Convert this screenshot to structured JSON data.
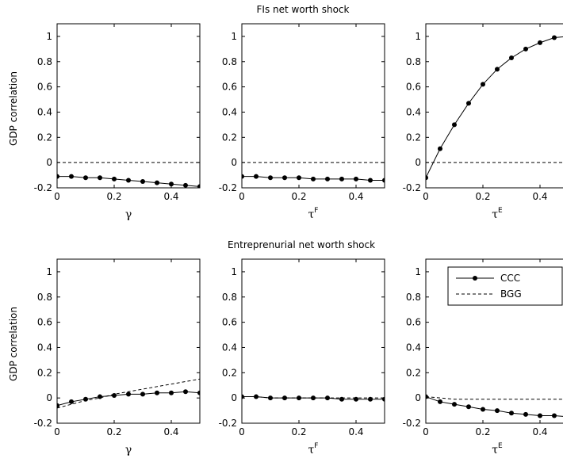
{
  "chart_data": {
    "type": "line",
    "ylabel": "GDP correlation",
    "ylim": [
      -0.2,
      1.1
    ],
    "yticks": [
      "1",
      "0.8",
      "0.6",
      "0.4",
      "0.2",
      "0",
      "-0.2"
    ],
    "xlim": [
      0,
      0.5
    ],
    "xticks": [
      "0",
      "0.2",
      "0.4"
    ],
    "legend": {
      "position": "top-right",
      "entries": [
        "CCC",
        "BGG"
      ]
    },
    "series_names": [
      "CCC",
      "BGG"
    ],
    "x": [
      0,
      0.05,
      0.1,
      0.15,
      0.2,
      0.25,
      0.3,
      0.35,
      0.4,
      0.45,
      0.5
    ],
    "panel_rows": [
      {
        "title": "FIs net worth shock",
        "panels": [
          {
            "xlabel": "γ",
            "xlabel_sup": "",
            "CCC": [
              -0.11,
              -0.11,
              -0.12,
              -0.12,
              -0.13,
              -0.14,
              -0.15,
              -0.16,
              -0.17,
              -0.18,
              -0.19
            ],
            "BGG": [
              0,
              0,
              0,
              0,
              0,
              0,
              0,
              0,
              0,
              0,
              0
            ]
          },
          {
            "xlabel": "τ",
            "xlabel_sup": "F",
            "CCC": [
              -0.11,
              -0.11,
              -0.12,
              -0.12,
              -0.12,
              -0.13,
              -0.13,
              -0.13,
              -0.13,
              -0.14,
              -0.14
            ],
            "BGG": [
              0,
              0,
              0,
              0,
              0,
              0,
              0,
              0,
              0,
              0,
              0
            ]
          },
          {
            "xlabel": "τ",
            "xlabel_sup": "E",
            "CCC": [
              -0.12,
              0.11,
              0.3,
              0.47,
              0.62,
              0.74,
              0.83,
              0.9,
              0.95,
              0.99,
              1.0
            ],
            "BGG": [
              0,
              0,
              0,
              0,
              0,
              0,
              0,
              0,
              0,
              0,
              0
            ]
          }
        ]
      },
      {
        "title": "Entreprenurial net worth shock",
        "panels": [
          {
            "xlabel": "γ",
            "xlabel_sup": "",
            "CCC": [
              -0.06,
              -0.03,
              -0.01,
              0.01,
              0.02,
              0.03,
              0.03,
              0.04,
              0.04,
              0.05,
              0.04
            ],
            "BGG": [
              -0.08,
              -0.05,
              -0.02,
              0.0,
              0.03,
              0.05,
              0.07,
              0.09,
              0.11,
              0.13,
              0.15
            ]
          },
          {
            "xlabel": "τ",
            "xlabel_sup": "F",
            "CCC": [
              0.01,
              0.01,
              0.0,
              0.0,
              0.0,
              0.0,
              0.0,
              -0.01,
              -0.01,
              -0.01,
              -0.01
            ],
            "BGG": [
              0.01,
              0.01,
              0.0,
              0.0,
              0.0,
              0.0,
              0.0,
              0.0,
              0.0,
              0.0,
              0.0
            ]
          },
          {
            "xlabel": "τ",
            "xlabel_sup": "E",
            "CCC": [
              0.01,
              -0.03,
              -0.05,
              -0.07,
              -0.09,
              -0.1,
              -0.12,
              -0.13,
              -0.14,
              -0.14,
              -0.15
            ],
            "BGG": [
              0.01,
              0.0,
              -0.01,
              -0.01,
              -0.01,
              -0.01,
              -0.01,
              -0.01,
              -0.01,
              -0.01,
              -0.01
            ]
          }
        ]
      }
    ]
  }
}
